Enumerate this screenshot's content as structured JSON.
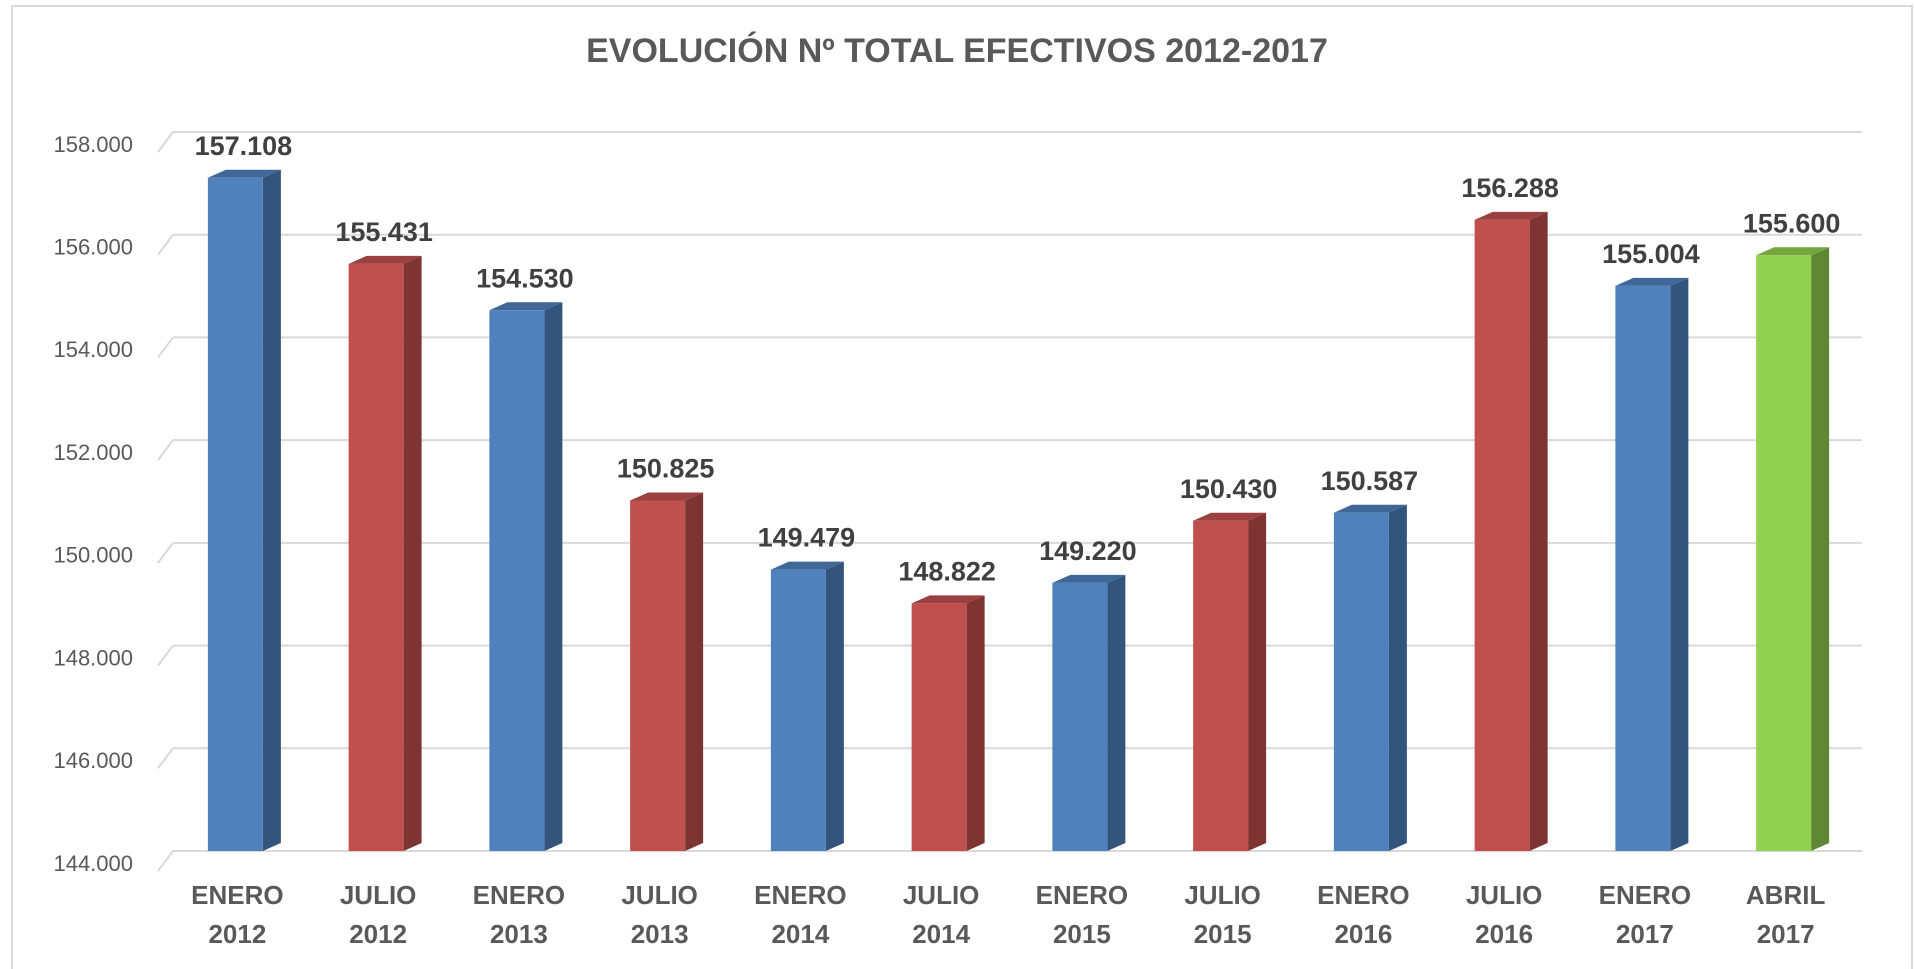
{
  "chart_data": {
    "type": "bar3d",
    "title": "EVOLUCIÓN Nº TOTAL EFECTIVOS 2012-2017",
    "categories": [
      [
        "ENERO",
        "2012"
      ],
      [
        "JULIO",
        "2012"
      ],
      [
        "ENERO",
        "2013"
      ],
      [
        "JULIO",
        "2013"
      ],
      [
        "ENERO",
        "2014"
      ],
      [
        "JULIO",
        "2014"
      ],
      [
        "ENERO",
        "2015"
      ],
      [
        "JULIO",
        "2015"
      ],
      [
        "ENERO",
        "2016"
      ],
      [
        "JULIO",
        "2016"
      ],
      [
        "ENERO",
        "2017"
      ],
      [
        "ABRIL",
        "2017"
      ]
    ],
    "values": [
      157108,
      155431,
      154530,
      150825,
      149479,
      148822,
      149220,
      150430,
      150587,
      156288,
      155004,
      155600
    ],
    "value_labels": [
      "157.108",
      "155.431",
      "154.530",
      "150.825",
      "149.479",
      "148.822",
      "149.220",
      "150.430",
      "150.587",
      "156.288",
      "155.004",
      "155.600"
    ],
    "colors": [
      "#4f81bd",
      "#c0504d",
      "#4f81bd",
      "#c0504d",
      "#4f81bd",
      "#c0504d",
      "#4f81bd",
      "#c0504d",
      "#4f81bd",
      "#c0504d",
      "#4f81bd",
      "#92d050"
    ],
    "ylim": [
      144000,
      158000
    ],
    "yticks": [
      {
        "value": 144000,
        "label": "144.000"
      },
      {
        "value": 146000,
        "label": "146.000"
      },
      {
        "value": 148000,
        "label": "148.000"
      },
      {
        "value": 150000,
        "label": "150.000"
      },
      {
        "value": 152000,
        "label": "152.000"
      },
      {
        "value": 154000,
        "label": "154.000"
      },
      {
        "value": 156000,
        "label": "156.000"
      },
      {
        "value": 158000,
        "label": "158.000"
      }
    ],
    "grid": true
  }
}
